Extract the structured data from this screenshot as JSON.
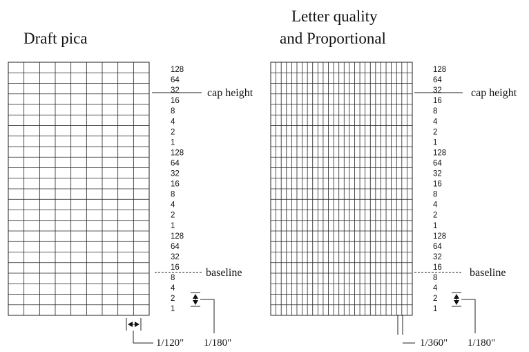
{
  "panels": [
    {
      "id": "draft",
      "title_lines": [
        "Draft pica"
      ],
      "bit_labels": [
        "128",
        "64",
        "32",
        "16",
        "8",
        "4",
        "2",
        "1",
        "128",
        "64",
        "32",
        "16",
        "8",
        "4",
        "2",
        "1",
        "128",
        "64",
        "32",
        "16",
        "8",
        "4",
        "2",
        "1"
      ],
      "cap_height_label": "cap height",
      "baseline_label": "baseline",
      "horizontal_pitch_label": "1/120\"",
      "vertical_pitch_label": "1/180\""
    },
    {
      "id": "letter",
      "title_lines": [
        "Letter quality",
        "and Proportional"
      ],
      "bit_labels": [
        "128",
        "64",
        "32",
        "16",
        "8",
        "4",
        "2",
        "1",
        "128",
        "64",
        "32",
        "16",
        "8",
        "4",
        "2",
        "1",
        "128",
        "64",
        "32",
        "16",
        "8",
        "4",
        "2",
        "1"
      ],
      "cap_height_label": "cap height",
      "baseline_label": "baseline",
      "horizontal_pitch_label": "1/360\"",
      "vertical_pitch_label": "1/180\""
    }
  ]
}
